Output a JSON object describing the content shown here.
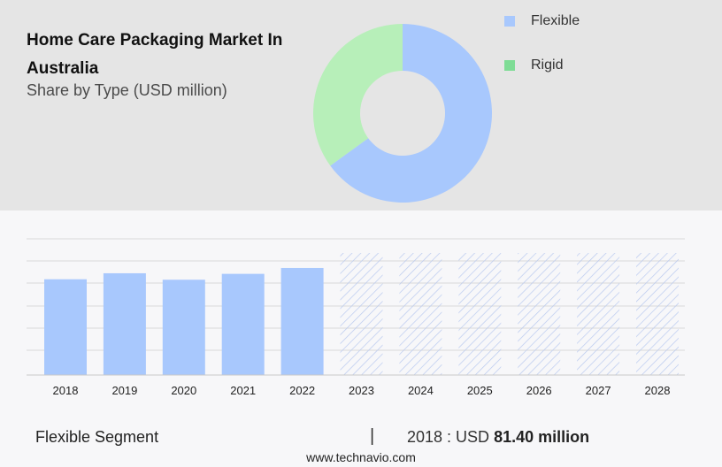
{
  "header": {
    "title": "Home Care Packaging Market In Australia",
    "subtitle": "Share by Type (USD million)"
  },
  "colors": {
    "flexible": "#a8c8fd",
    "rigid": "#b7efb9",
    "rigid_legend": "#7edc95",
    "hatch": "#b9c9ef",
    "grid": "#d9d9d9"
  },
  "chart_data": [
    {
      "type": "pie",
      "variant": "donut",
      "legend_position": "top-right",
      "series": [
        {
          "name": "Flexible",
          "value": 65
        },
        {
          "name": "Rigid",
          "value": 35
        }
      ]
    },
    {
      "type": "bar",
      "categories": [
        "2018",
        "2019",
        "2020",
        "2021",
        "2022",
        "2023",
        "2024",
        "2025",
        "2026",
        "2027",
        "2028"
      ],
      "values": [
        81.4,
        86.5,
        81.0,
        86.0,
        91.0,
        null,
        null,
        null,
        null,
        null,
        null
      ],
      "forecast_categories": [
        "2023",
        "2024",
        "2025",
        "2026",
        "2027",
        "2028"
      ],
      "forecast_style": "hatched",
      "grid": true
    }
  ],
  "footer": {
    "segment_label": "Flexible Segment",
    "separator": "|",
    "value_prefix": "2018 : USD",
    "value_bold": "81.40 million",
    "source": "www.technavio.com"
  }
}
